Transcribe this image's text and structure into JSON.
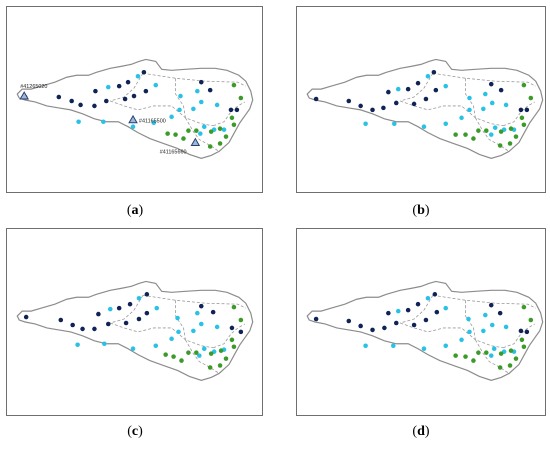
{
  "panels": [
    {
      "paren_open": "(",
      "letter": "a",
      "paren_close": ")"
    },
    {
      "paren_open": "(",
      "letter": "b",
      "paren_close": ")"
    },
    {
      "paren_open": "(",
      "letter": "c",
      "paren_close": ")"
    },
    {
      "paren_open": "(",
      "letter": "d",
      "paren_close": ")"
    }
  ],
  "gauges": [
    {
      "id": "#41265020"
    },
    {
      "id": "#41165500"
    },
    {
      "id": "#41165660"
    }
  ],
  "colors": {
    "cluster_dark": "#0f2356",
    "cluster_light": "#29c2e6",
    "cluster_green": "#3b9b28",
    "boundary": "#8c8c8c",
    "gauge": "#27416f"
  }
}
